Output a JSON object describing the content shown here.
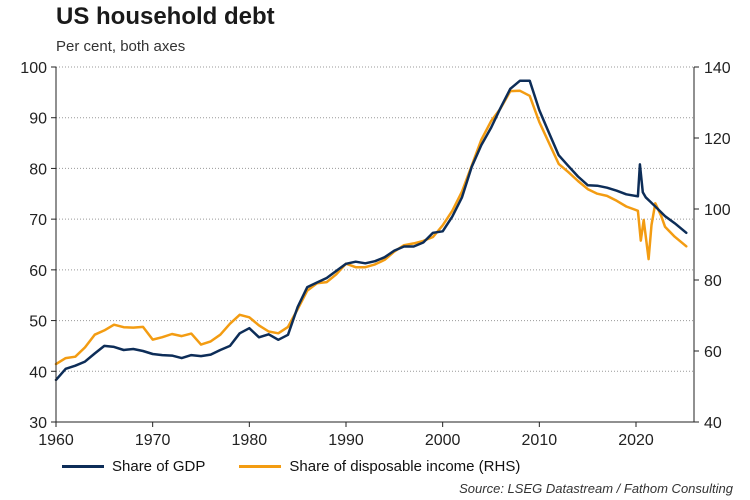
{
  "title": "US household debt",
  "subtitle": "Per cent, both axes",
  "source": "Source: LSEG Datastream / Fathom Consulting",
  "colors": {
    "gdp": "#0d2d58",
    "income": "#f39c12",
    "grid": "#999999"
  },
  "chart_data": {
    "type": "line",
    "xlim": [
      1960,
      2026
    ],
    "x_ticks": [
      1960,
      1970,
      1980,
      1990,
      2000,
      2010,
      2020
    ],
    "y_left": {
      "lim": [
        30,
        100
      ],
      "ticks": [
        30,
        40,
        50,
        60,
        70,
        80,
        90,
        100
      ]
    },
    "y_right": {
      "lim": [
        40,
        140
      ],
      "ticks": [
        40,
        60,
        80,
        100,
        120,
        140
      ]
    },
    "grid": true,
    "legend_position": "bottom",
    "series": [
      {
        "name": "Share of GDP",
        "axis": "left",
        "color": "#0d2d58",
        "points": [
          [
            1960,
            38.3
          ],
          [
            1961,
            40.5
          ],
          [
            1962,
            41.1
          ],
          [
            1963,
            41.9
          ],
          [
            1964,
            43.5
          ],
          [
            1965,
            45
          ],
          [
            1966,
            44.8
          ],
          [
            1967,
            44.2
          ],
          [
            1968,
            44.4
          ],
          [
            1969,
            44
          ],
          [
            1970,
            43.4
          ],
          [
            1971,
            43.2
          ],
          [
            1972,
            43.1
          ],
          [
            1973,
            42.6
          ],
          [
            1974,
            43.2
          ],
          [
            1975,
            43
          ],
          [
            1976,
            43.3
          ],
          [
            1977,
            44.2
          ],
          [
            1978,
            45
          ],
          [
            1979,
            47.5
          ],
          [
            1980,
            48.5
          ],
          [
            1981,
            46.7
          ],
          [
            1982,
            47.3
          ],
          [
            1983,
            46.2
          ],
          [
            1984,
            47.2
          ],
          [
            1985,
            52.7
          ],
          [
            1986,
            56.6
          ],
          [
            1987,
            57.5
          ],
          [
            1988,
            58.4
          ],
          [
            1989,
            59.8
          ],
          [
            1990,
            61.2
          ],
          [
            1991,
            61.6
          ],
          [
            1992,
            61.3
          ],
          [
            1993,
            61.7
          ],
          [
            1994,
            62.5
          ],
          [
            1995,
            63.8
          ],
          [
            1996,
            64.6
          ],
          [
            1997,
            64.6
          ],
          [
            1998,
            65.4
          ],
          [
            1999,
            67.3
          ],
          [
            2000,
            67.6
          ],
          [
            2001,
            70.5
          ],
          [
            2002,
            74.3
          ],
          [
            2003,
            80.3
          ],
          [
            2004,
            84.6
          ],
          [
            2005,
            88
          ],
          [
            2006,
            92
          ],
          [
            2007,
            95.7
          ],
          [
            2008,
            97.3
          ],
          [
            2009,
            97.3
          ],
          [
            2010,
            91.5
          ],
          [
            2011,
            87
          ],
          [
            2012,
            82.6
          ],
          [
            2013,
            80.5
          ],
          [
            2014,
            78.4
          ],
          [
            2015,
            76.7
          ],
          [
            2016,
            76.6
          ],
          [
            2017,
            76.2
          ],
          [
            2018,
            75.6
          ],
          [
            2019,
            74.9
          ],
          [
            2020.2,
            74.5
          ],
          [
            2020.4,
            80.8
          ],
          [
            2020.7,
            75.3
          ],
          [
            2021,
            74.3
          ],
          [
            2021.5,
            73.4
          ],
          [
            2022,
            72.5
          ],
          [
            2023,
            70.6
          ],
          [
            2024,
            69.2
          ],
          [
            2025.2,
            67.3
          ]
        ]
      },
      {
        "name": "Share of disposable income (RHS)",
        "axis": "right",
        "color": "#f39c12",
        "points": [
          [
            1960,
            56.3
          ],
          [
            1961,
            58
          ],
          [
            1962,
            58.4
          ],
          [
            1963,
            61
          ],
          [
            1964,
            64.6
          ],
          [
            1965,
            65.8
          ],
          [
            1966,
            67.4
          ],
          [
            1967,
            66.7
          ],
          [
            1968,
            66.6
          ],
          [
            1969,
            66.8
          ],
          [
            1970,
            63.2
          ],
          [
            1971,
            63.9
          ],
          [
            1972,
            64.8
          ],
          [
            1973,
            64.2
          ],
          [
            1974,
            64.9
          ],
          [
            1975,
            61.8
          ],
          [
            1976,
            62.7
          ],
          [
            1977,
            64.6
          ],
          [
            1978,
            67.7
          ],
          [
            1979,
            70.2
          ],
          [
            1980,
            69.5
          ],
          [
            1981,
            67.2
          ],
          [
            1982,
            65.5
          ],
          [
            1983,
            65
          ],
          [
            1984,
            66.8
          ],
          [
            1985,
            71.8
          ],
          [
            1986,
            77
          ],
          [
            1987,
            79.1
          ],
          [
            1988,
            79.4
          ],
          [
            1989,
            81.6
          ],
          [
            1990,
            84.6
          ],
          [
            1991,
            83.6
          ],
          [
            1992,
            83.6
          ],
          [
            1993,
            84.4
          ],
          [
            1994,
            85.7
          ],
          [
            1995,
            88
          ],
          [
            1996,
            89.8
          ],
          [
            1997,
            90.3
          ],
          [
            1998,
            91
          ],
          [
            1999,
            92.1
          ],
          [
            2000,
            95.4
          ],
          [
            2001,
            99.5
          ],
          [
            2002,
            104.9
          ],
          [
            2003,
            112.2
          ],
          [
            2004,
            119.5
          ],
          [
            2005,
            124.7
          ],
          [
            2006,
            128.4
          ],
          [
            2007,
            133.2
          ],
          [
            2008,
            133.3
          ],
          [
            2009,
            131.9
          ],
          [
            2010,
            124.5
          ],
          [
            2011,
            118.6
          ],
          [
            2012,
            112.7
          ],
          [
            2013,
            110.4
          ],
          [
            2014,
            107.9
          ],
          [
            2015,
            105.6
          ],
          [
            2016,
            104.3
          ],
          [
            2017,
            103.7
          ],
          [
            2018,
            102.3
          ],
          [
            2019,
            100.7
          ],
          [
            2020.2,
            99.5
          ],
          [
            2020.5,
            91.1
          ],
          [
            2020.8,
            96.9
          ],
          [
            2021.3,
            85.9
          ],
          [
            2021.6,
            95.5
          ],
          [
            2022,
            101.6
          ],
          [
            2022.6,
            98.1
          ],
          [
            2023,
            95
          ],
          [
            2024,
            92.2
          ],
          [
            2025.2,
            89.5
          ]
        ]
      }
    ]
  }
}
